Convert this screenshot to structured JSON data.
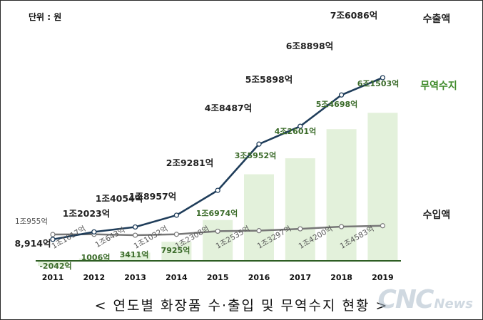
{
  "unit_label": "단위 : 원",
  "caption": "< 연도별 화장품 수·출입 및 무역수지 현황 >",
  "watermark": {
    "big": "CNC",
    "small": "News"
  },
  "colors": {
    "export": "#1f3d5a",
    "import": "#777777",
    "bar": "#e3f1db",
    "bar_label": "#3b6b2a",
    "export_label": "#222222",
    "import_label": "#555555",
    "baseline": "#2e5e23"
  },
  "chart_data": {
    "type": "bar",
    "x": [
      "2011",
      "2012",
      "2013",
      "2014",
      "2015",
      "2016",
      "2017",
      "2018",
      "2019"
    ],
    "ylim": [
      -5000,
      80000
    ],
    "series": [
      {
        "name": "수출액",
        "kind": "line",
        "values": [
          8914,
          12023,
          14054,
          18957,
          29281,
          48487,
          55898,
          68898,
          76086
        ],
        "labels": [
          "8,914억",
          "1조2023억",
          "1조4054억",
          "1조8957억",
          "2조9281억",
          "4조8487억",
          "5조5898억",
          "6조8898억",
          "7조6086억"
        ]
      },
      {
        "name": "수입액",
        "kind": "line",
        "values": [
          10955,
          11017,
          10643,
          11032,
          12308,
          12535,
          13297,
          14200,
          14583
        ],
        "labels": [
          "1조955억",
          "1조1017억",
          "1조643억",
          "1조1032억",
          "1조2308억",
          "1조2535억",
          "1조3297억",
          "1조4200억",
          "1조4583억"
        ]
      },
      {
        "name": "무역수지",
        "kind": "bar",
        "values": [
          -2042,
          1006,
          3411,
          7925,
          16974,
          35952,
          42601,
          54698,
          61503
        ],
        "labels": [
          "-2042억",
          "1006억",
          "3411억",
          "7925억",
          "1조6974억",
          "3조5952억",
          "4조2601억",
          "5조4698억",
          "6조1503억"
        ]
      }
    ]
  }
}
